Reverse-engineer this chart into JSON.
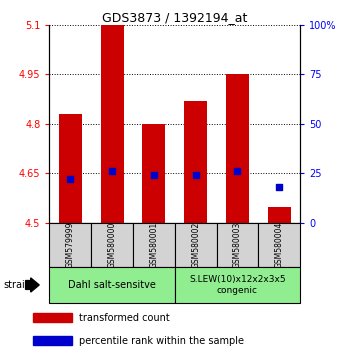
{
  "title": "GDS3873 / 1392194_at",
  "samples": [
    "GSM579999",
    "GSM580000",
    "GSM580001",
    "GSM580002",
    "GSM580003",
    "GSM580004"
  ],
  "bar_values": [
    4.83,
    5.1,
    4.8,
    4.87,
    4.95,
    4.55
  ],
  "bar_base": 4.5,
  "percentile_values": [
    22,
    26,
    24,
    24,
    26,
    18
  ],
  "ylim_left": [
    4.5,
    5.1
  ],
  "ylim_right": [
    0,
    100
  ],
  "yticks_left": [
    4.5,
    4.65,
    4.8,
    4.95,
    5.1
  ],
  "yticks_right": [
    0,
    25,
    50,
    75,
    100
  ],
  "bar_color": "#cc0000",
  "dot_color": "#0000cc",
  "group1_label": "Dahl salt-sensitve",
  "group2_label": "S.LEW(10)x12x2x3x5\ncongenic",
  "group_color": "#90ee90",
  "sample_box_color": "#d3d3d3",
  "strain_label": "strain",
  "legend_red_label": "transformed count",
  "legend_blue_label": "percentile rank within the sample",
  "bar_width": 0.55,
  "tick_label_fontsize": 7,
  "title_fontsize": 9,
  "sample_fontsize": 5.5,
  "group_fontsize": 7,
  "legend_fontsize": 7
}
